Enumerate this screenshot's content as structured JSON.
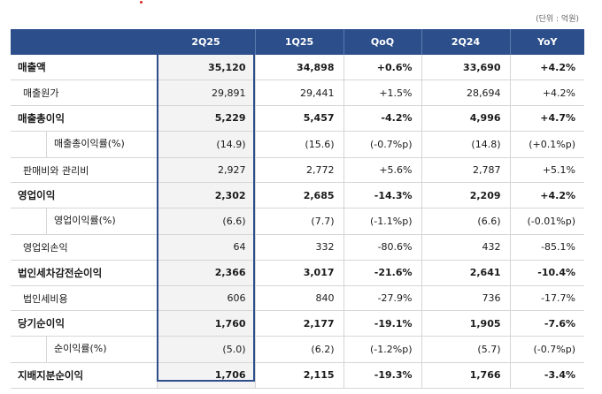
{
  "unit_label": "(단위 : 억원)",
  "headers": [
    "",
    "2Q25",
    "1Q25",
    "QoQ",
    "2Q24",
    "YoY"
  ],
  "rows": [
    {
      "label": "매출액",
      "v": [
        "35,120",
        "34,898",
        "+0.6%",
        "33,690",
        "+4.2%"
      ]
    },
    {
      "label": "매출원가",
      "v": [
        "29,891",
        "29,441",
        "+1.5%",
        "28,694",
        "+4.2%"
      ]
    },
    {
      "label": "매출총이익",
      "v": [
        "5,229",
        "5,457",
        "-4.2%",
        "4,996",
        "+4.7%"
      ]
    },
    {
      "label": "매출총이익률(%)",
      "v": [
        "(14.9)",
        "(15.6)",
        "(-0.7%p)",
        "(14.8)",
        "(+0.1%p)"
      ]
    },
    {
      "label": "판매비와 관리비",
      "v": [
        "2,927",
        "2,772",
        "+5.6%",
        "2,787",
        "+5.1%"
      ]
    },
    {
      "label": "영업이익",
      "v": [
        "2,302",
        "2,685",
        "-14.3%",
        "2,209",
        "+4.2%"
      ]
    },
    {
      "label": "영업이익률(%)",
      "v": [
        "(6.6)",
        "(7.7)",
        "(-1.1%p)",
        "(6.6)",
        "(-0.01%p)"
      ]
    },
    {
      "label": "영업외손익",
      "v": [
        "64",
        "332",
        "-80.6%",
        "432",
        "-85.1%"
      ]
    },
    {
      "label": "법인세차감전순이익",
      "v": [
        "2,366",
        "3,017",
        "-21.6%",
        "2,641",
        "-10.4%"
      ]
    },
    {
      "label": "법인세비용",
      "v": [
        "606",
        "840",
        "-27.9%",
        "736",
        "-17.7%"
      ]
    },
    {
      "label": "당기순이익",
      "v": [
        "1,760",
        "2,177",
        "-19.1%",
        "1,905",
        "-7.6%"
      ]
    },
    {
      "label": "순이익률(%)",
      "v": [
        "(5.0)",
        "(6.2)",
        "(-1.2%p)",
        "(5.7)",
        "(-0.7%p)"
      ]
    },
    {
      "label": "지배지분순이익",
      "v": [
        "1,706",
        "2,115",
        "-19.3%",
        "1,766",
        "-3.4%"
      ]
    }
  ]
}
